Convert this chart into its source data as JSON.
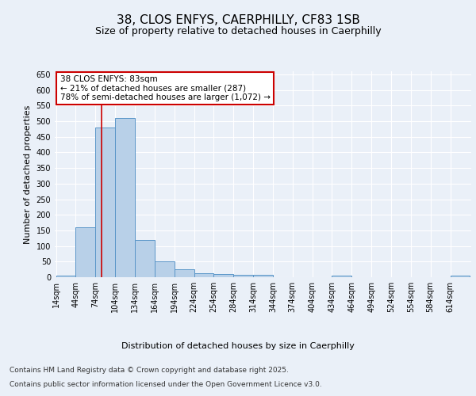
{
  "title": "38, CLOS ENFYS, CAERPHILLY, CF83 1SB",
  "subtitle": "Size of property relative to detached houses in Caerphilly",
  "xlabel": "Distribution of detached houses by size in Caerphilly",
  "ylabel": "Number of detached properties",
  "bin_labels": [
    "14sqm",
    "44sqm",
    "74sqm",
    "104sqm",
    "134sqm",
    "164sqm",
    "194sqm",
    "224sqm",
    "254sqm",
    "284sqm",
    "314sqm",
    "344sqm",
    "374sqm",
    "404sqm",
    "434sqm",
    "464sqm",
    "494sqm",
    "524sqm",
    "554sqm",
    "584sqm",
    "614sqm"
  ],
  "bar_values": [
    5,
    160,
    480,
    510,
    120,
    50,
    25,
    12,
    10,
    8,
    7,
    0,
    0,
    0,
    5,
    0,
    0,
    0,
    0,
    0,
    4
  ],
  "bin_width": 30,
  "bin_starts": [
    14,
    44,
    74,
    104,
    134,
    164,
    194,
    224,
    254,
    284,
    314,
    344,
    374,
    404,
    434,
    464,
    494,
    524,
    554,
    584,
    614
  ],
  "bar_color": "#b8d0e8",
  "bar_edge_color": "#5a96c8",
  "vline_x": 83,
  "vline_color": "#cc0000",
  "annotation_text": "38 CLOS ENFYS: 83sqm\n← 21% of detached houses are smaller (287)\n78% of semi-detached houses are larger (1,072) →",
  "annotation_box_color": "#ffffff",
  "annotation_box_edge": "#cc0000",
  "ylim": [
    0,
    660
  ],
  "yticks": [
    0,
    50,
    100,
    150,
    200,
    250,
    300,
    350,
    400,
    450,
    500,
    550,
    600,
    650
  ],
  "bg_color": "#eaf0f8",
  "footer_line1": "Contains HM Land Registry data © Crown copyright and database right 2025.",
  "footer_line2": "Contains public sector information licensed under the Open Government Licence v3.0.",
  "title_fontsize": 11,
  "subtitle_fontsize": 9,
  "axis_label_fontsize": 8,
  "tick_fontsize": 7,
  "annotation_fontsize": 7.5,
  "footer_fontsize": 6.5
}
